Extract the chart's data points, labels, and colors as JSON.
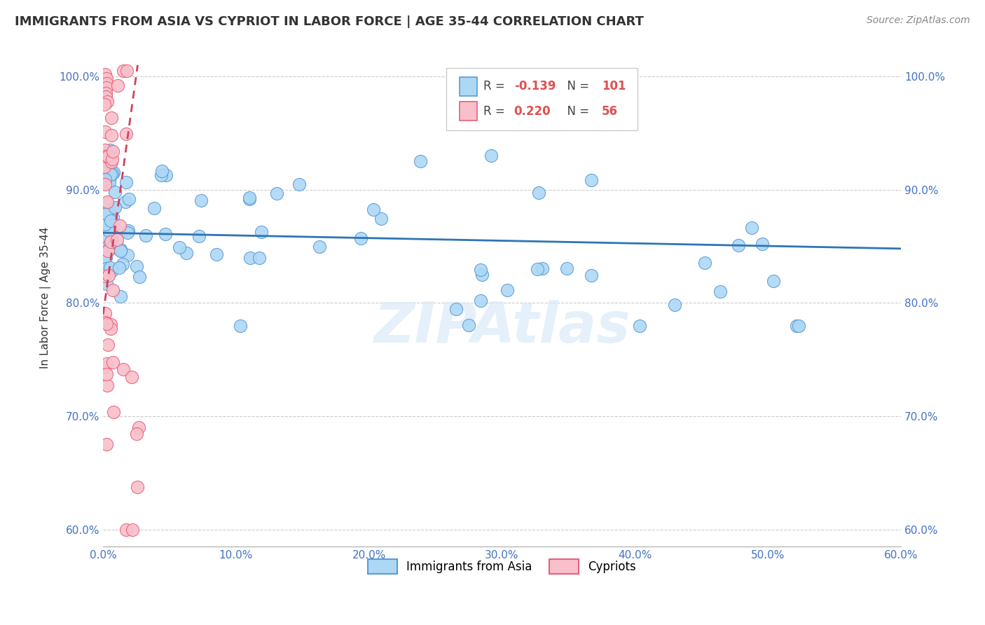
{
  "title": "IMMIGRANTS FROM ASIA VS CYPRIOT IN LABOR FORCE | AGE 35-44 CORRELATION CHART",
  "source": "Source: ZipAtlas.com",
  "ylabel": "In Labor Force | Age 35-44",
  "xlim": [
    0.0,
    0.6
  ],
  "ylim": [
    0.585,
    1.025
  ],
  "xticks": [
    0.0,
    0.1,
    0.2,
    0.3,
    0.4,
    0.5,
    0.6
  ],
  "xticklabels": [
    "0.0%",
    "10.0%",
    "20.0%",
    "30.0%",
    "40.0%",
    "50.0%",
    "60.0%"
  ],
  "yticks": [
    0.6,
    0.7,
    0.8,
    0.9,
    1.0
  ],
  "yticklabels": [
    "60.0%",
    "70.0%",
    "80.0%",
    "90.0%",
    "100.0%"
  ],
  "blue_color": "#ADD8F5",
  "blue_edge": "#5B9BD5",
  "pink_color": "#F9C0CB",
  "pink_edge": "#E8607A",
  "blue_R": -0.139,
  "blue_N": 101,
  "pink_R": 0.22,
  "pink_N": 56,
  "blue_line_color": "#2E75B6",
  "pink_line_color": "#D04060",
  "legend1_label": "Immigrants from Asia",
  "legend2_label": "Cypriots",
  "watermark": "ZIPAtlas",
  "title_fontsize": 13,
  "axis_label_fontsize": 11,
  "tick_fontsize": 11,
  "source_fontsize": 10,
  "tick_color": "#4472C4"
}
